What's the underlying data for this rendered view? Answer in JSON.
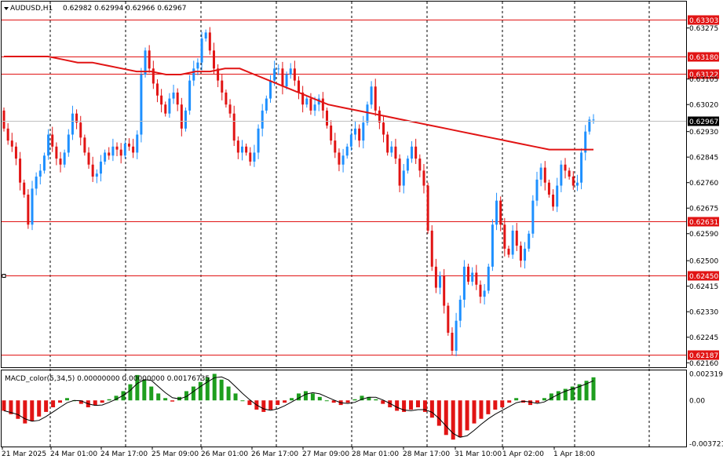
{
  "header": {
    "symbol": "AUDUSD,H1",
    "ohlc": "0.62982 0.62994 0.62966 0.62967"
  },
  "indicator": {
    "label": "MACD_color(5,34,5) 0.00000000 0.00000000 0.00176735"
  },
  "colors": {
    "bull": "#1e90ff",
    "bear": "#e11414",
    "ma": "#e11414",
    "hline": "#e11414",
    "macd_pos": "#1e9e1e",
    "macd_neg": "#e11414",
    "grid": "#000000"
  },
  "chart_data": [
    {
      "type": "candlestick",
      "symbol": "AUDUSD",
      "timeframe": "H1",
      "x_labels": [
        "21 Mar 2025",
        "24 Mar 01:00",
        "24 Mar 17:00",
        "25 Mar 09:00",
        "26 Mar 01:00",
        "26 Mar 17:00",
        "27 Mar 09:00",
        "28 Mar 01:00",
        "28 Mar 17:00",
        "31 Mar 10:00",
        "1 Apr 02:00",
        "1 Apr 18:00"
      ],
      "y_ticks": [
        "0.63275",
        "0.63105",
        "0.63020",
        "0.62930",
        "0.62845",
        "0.62760",
        "0.62675",
        "0.62590",
        "0.62500",
        "0.62415",
        "0.62330",
        "0.62245",
        "0.62160"
      ],
      "ylim": [
        0.62145,
        0.63363
      ],
      "horizontal_levels": [
        "0.63303",
        "0.63180",
        "0.63122",
        "0.62631",
        "0.62450",
        "0.62187"
      ],
      "current_price": "0.62967",
      "series": {
        "close": [
          0.6294,
          0.629,
          0.6288,
          0.6284,
          0.6276,
          0.6272,
          0.6262,
          0.6274,
          0.6278,
          0.628,
          0.6285,
          0.6292,
          0.6288,
          0.6284,
          0.6282,
          0.6286,
          0.6292,
          0.6299,
          0.6296,
          0.6291,
          0.6286,
          0.6282,
          0.6278,
          0.6279,
          0.6283,
          0.6286,
          0.6285,
          0.6288,
          0.6287,
          0.6285,
          0.6289,
          0.6288,
          0.6286,
          0.6292,
          0.6312,
          0.632,
          0.6314,
          0.6309,
          0.6305,
          0.6302,
          0.6299,
          0.6304,
          0.6306,
          0.6302,
          0.6294,
          0.63,
          0.631,
          0.6314,
          0.6316,
          0.6324,
          0.6326,
          0.632,
          0.6314,
          0.631,
          0.6306,
          0.6302,
          0.6299,
          0.629,
          0.6286,
          0.6288,
          0.6286,
          0.6283,
          0.6286,
          0.6294,
          0.63,
          0.6304,
          0.631,
          0.6314,
          0.6314,
          0.6308,
          0.6312,
          0.6314,
          0.631,
          0.6306,
          0.6302,
          0.6304,
          0.63,
          0.6302,
          0.6304,
          0.63,
          0.6295,
          0.629,
          0.6286,
          0.6282,
          0.6285,
          0.6288,
          0.6292,
          0.6294,
          0.629,
          0.6296,
          0.6302,
          0.6308,
          0.63,
          0.6296,
          0.6292,
          0.6286,
          0.6288,
          0.6284,
          0.6275,
          0.628,
          0.6284,
          0.6288,
          0.6284,
          0.628,
          0.6275,
          0.626,
          0.6248,
          0.6241,
          0.6245,
          0.6235,
          0.6226,
          0.622,
          0.623,
          0.6237,
          0.6248,
          0.6243,
          0.6246,
          0.6242,
          0.6238,
          0.624,
          0.6248,
          0.6262,
          0.627,
          0.6262,
          0.6254,
          0.6252,
          0.626,
          0.6255,
          0.625,
          0.6254,
          0.6259,
          0.627,
          0.6277,
          0.6281,
          0.6276,
          0.6272,
          0.6268,
          0.6275,
          0.6282,
          0.628,
          0.6278,
          0.6275,
          0.6276,
          0.6286,
          0.6293,
          0.6297,
          0.6297
        ],
        "ma": [
          0.6318,
          0.6318,
          0.6318,
          0.6318,
          0.6317,
          0.6316,
          0.6316,
          0.6315,
          0.6314,
          0.6313,
          0.6313,
          0.6312,
          0.6312,
          0.6313,
          0.6313,
          0.6314,
          0.6314,
          0.6312,
          0.631,
          0.6308,
          0.6306,
          0.6304,
          0.6302,
          0.6301,
          0.63,
          0.6299,
          0.6298,
          0.6297,
          0.6296,
          0.6295,
          0.6294,
          0.6293,
          0.6292,
          0.6291,
          0.629,
          0.6289,
          0.6288,
          0.6287,
          0.6287,
          0.6287,
          0.6287
        ],
        "macd": [
          -0.0009,
          -0.0012,
          -0.0016,
          -0.002,
          -0.0018,
          -0.0014,
          -0.001,
          -0.0006,
          -0.0002,
          0.0002,
          0.0,
          -0.0003,
          -0.0006,
          -0.0004,
          -0.0002,
          0.0001,
          0.0004,
          0.0008,
          0.0014,
          0.0022,
          0.0018,
          0.0012,
          0.0006,
          0.0002,
          -0.0001,
          0.0003,
          0.0008,
          0.0012,
          0.0016,
          0.002,
          0.0023,
          0.0018,
          0.0012,
          0.0006,
          0.0,
          -0.0004,
          -0.0008,
          -0.001,
          -0.0008,
          -0.0004,
          -0.0002,
          0.0002,
          0.0006,
          0.0008,
          0.0006,
          0.0003,
          0.0,
          -0.0002,
          -0.0004,
          -0.0002,
          0.0001,
          0.0004,
          0.0003,
          0.0001,
          -0.0003,
          -0.0006,
          -0.0009,
          -0.001,
          -0.0008,
          -0.0006,
          -0.001,
          -0.0015,
          -0.0022,
          -0.003,
          -0.0034,
          -0.0032,
          -0.0026,
          -0.002,
          -0.0016,
          -0.0012,
          -0.0008,
          -0.0006,
          -0.0002,
          0.0002,
          -0.0002,
          -0.0004,
          -0.0002,
          0.0002,
          0.0006,
          0.0008,
          0.001,
          0.0012,
          0.0014,
          0.0017,
          0.002
        ]
      }
    }
  ]
}
